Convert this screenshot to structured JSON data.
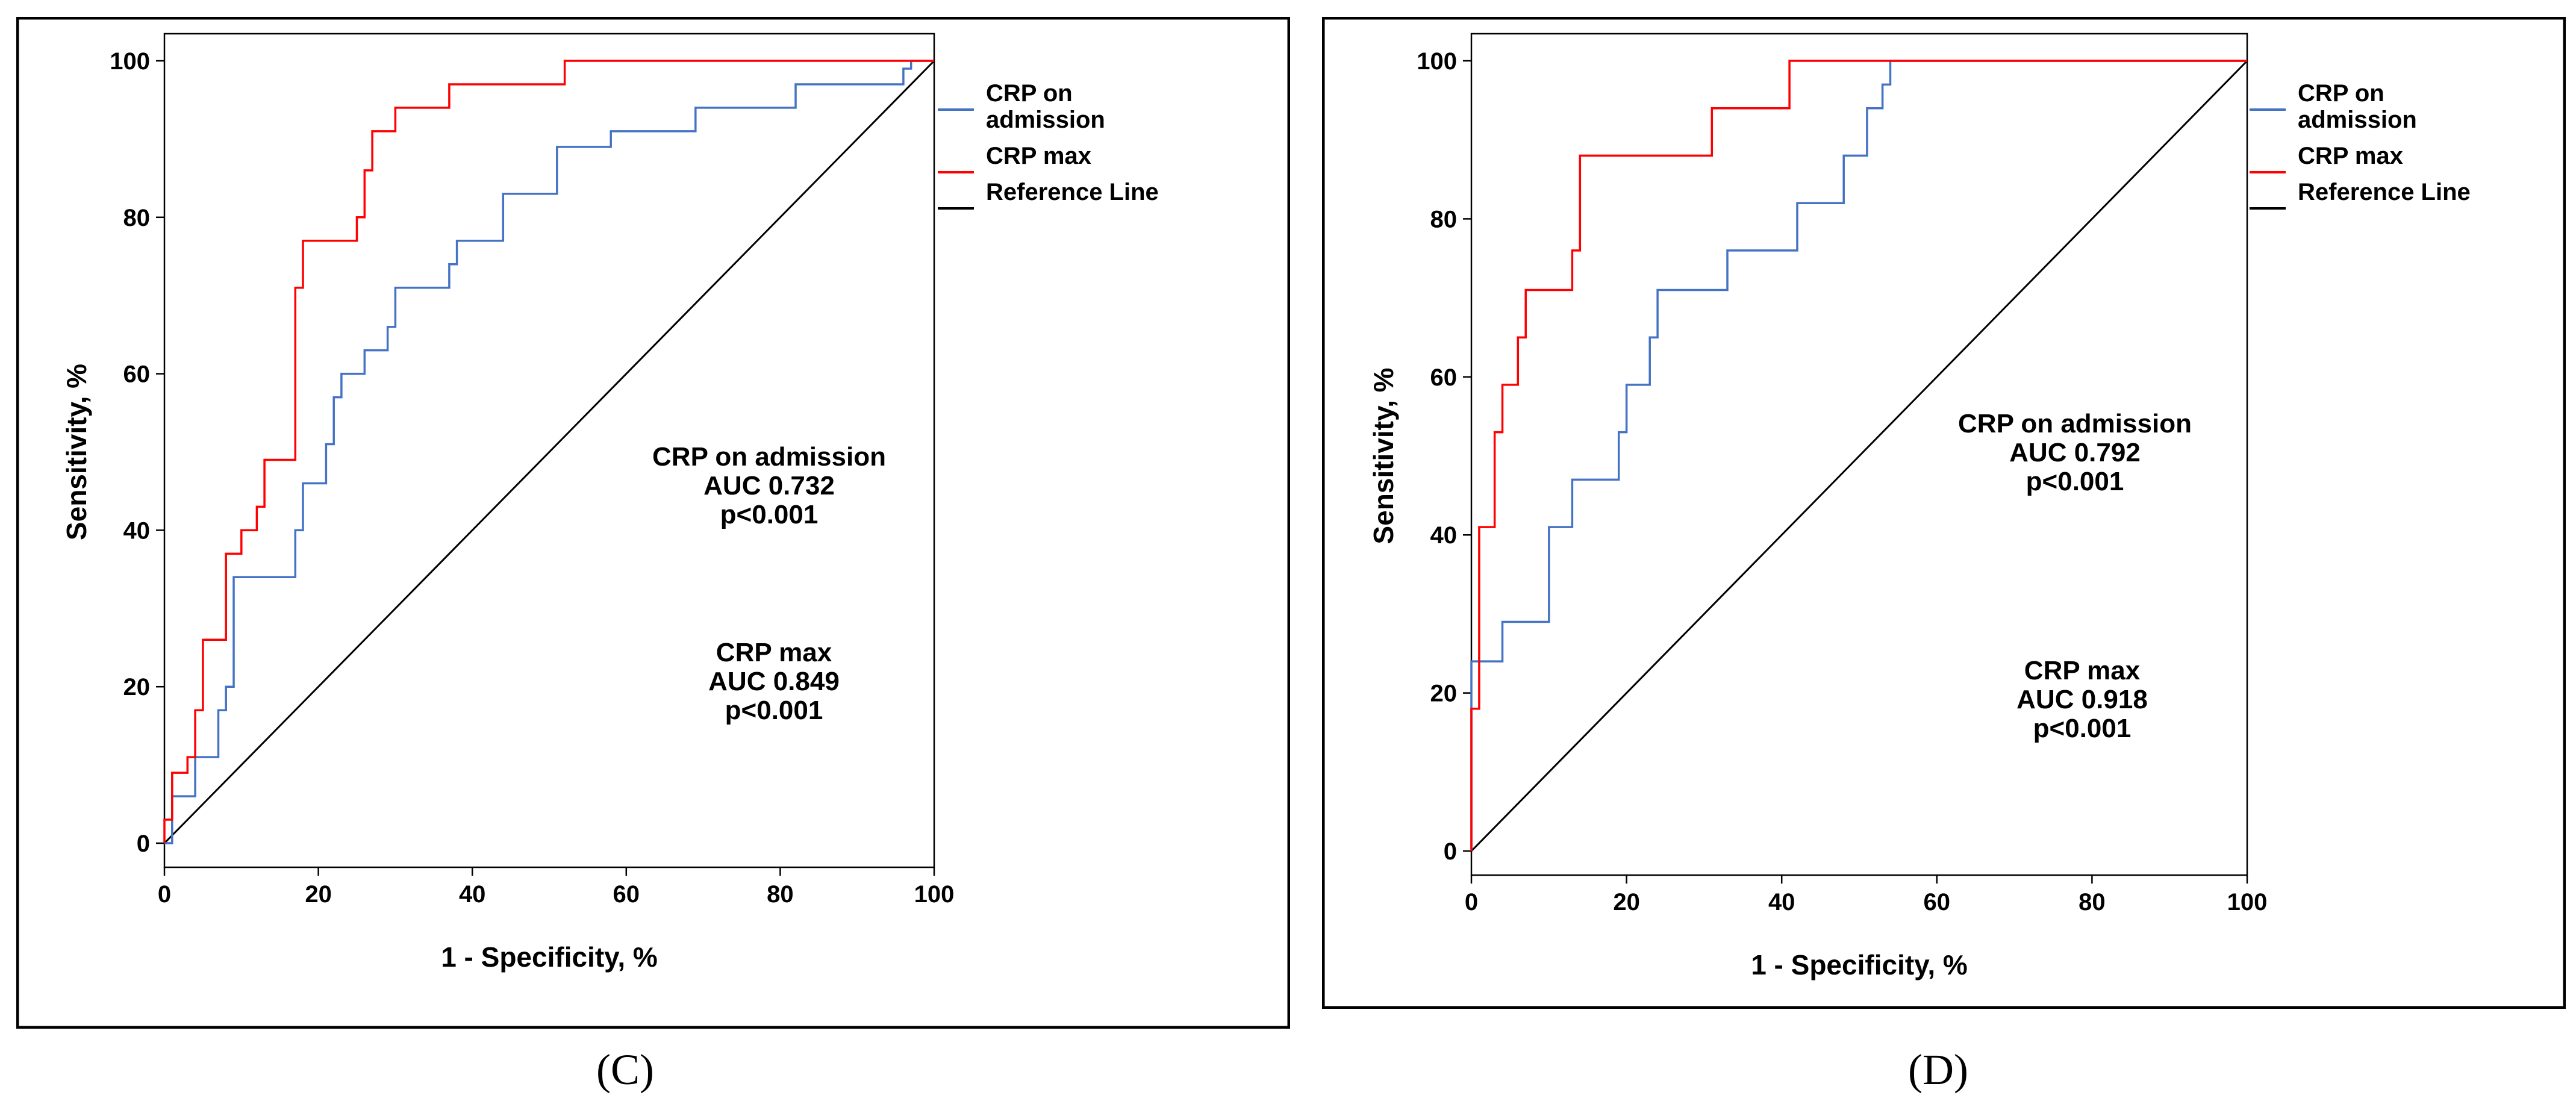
{
  "panels": [
    {
      "letter": "(C)"
    },
    {
      "letter": "(D)"
    }
  ],
  "chart_data": [
    {
      "type": "line",
      "xlabel": "1 - Specificity, %",
      "ylabel": "Sensitivity, %",
      "xlim": [
        0,
        100
      ],
      "ylim": [
        0,
        100
      ],
      "xticks": [
        0,
        20,
        40,
        60,
        80,
        100
      ],
      "yticks": [
        0,
        20,
        40,
        60,
        80,
        100
      ],
      "legend": [
        "CRP on admission",
        "CRP max",
        "Reference Line"
      ],
      "legend_lines": [
        [
          "CRP on",
          "admission"
        ],
        [
          "CRP max"
        ],
        [
          "Reference Line"
        ]
      ],
      "colors": {
        "admission": "#4472c4",
        "max": "#ff0000",
        "reference": "#000000"
      },
      "annotations": [
        {
          "lines": [
            "CRP on admission",
            "AUC 0.732",
            "p<0.001"
          ]
        },
        {
          "lines": [
            "CRP max",
            "AUC 0.849",
            "p<0.001"
          ]
        }
      ],
      "series": [
        {
          "name": "CRP on admission",
          "color": "#4472c4",
          "points": [
            [
              0,
              0
            ],
            [
              1,
              0
            ],
            [
              1,
              6
            ],
            [
              4,
              6
            ],
            [
              4,
              11
            ],
            [
              7,
              11
            ],
            [
              7,
              17
            ],
            [
              8,
              17
            ],
            [
              8,
              20
            ],
            [
              9,
              20
            ],
            [
              9,
              34
            ],
            [
              17,
              34
            ],
            [
              17,
              40
            ],
            [
              18,
              40
            ],
            [
              18,
              46
            ],
            [
              21,
              46
            ],
            [
              21,
              51
            ],
            [
              22,
              51
            ],
            [
              22,
              57
            ],
            [
              23,
              57
            ],
            [
              23,
              60
            ],
            [
              26,
              60
            ],
            [
              26,
              63
            ],
            [
              29,
              63
            ],
            [
              29,
              66
            ],
            [
              30,
              66
            ],
            [
              30,
              71
            ],
            [
              37,
              71
            ],
            [
              37,
              74
            ],
            [
              38,
              74
            ],
            [
              38,
              77
            ],
            [
              44,
              77
            ],
            [
              44,
              83
            ],
            [
              51,
              83
            ],
            [
              51,
              89
            ],
            [
              58,
              89
            ],
            [
              58,
              91
            ],
            [
              69,
              91
            ],
            [
              69,
              94
            ],
            [
              82,
              94
            ],
            [
              82,
              97
            ],
            [
              96,
              97
            ],
            [
              96,
              99
            ],
            [
              97,
              99
            ],
            [
              97,
              100
            ],
            [
              100,
              100
            ]
          ]
        },
        {
          "name": "CRP max",
          "color": "#ff0000",
          "points": [
            [
              0,
              0
            ],
            [
              0,
              3
            ],
            [
              1,
              3
            ],
            [
              1,
              9
            ],
            [
              3,
              9
            ],
            [
              3,
              11
            ],
            [
              4,
              11
            ],
            [
              4,
              17
            ],
            [
              5,
              17
            ],
            [
              5,
              26
            ],
            [
              8,
              26
            ],
            [
              8,
              37
            ],
            [
              10,
              37
            ],
            [
              10,
              40
            ],
            [
              12,
              40
            ],
            [
              12,
              43
            ],
            [
              13,
              43
            ],
            [
              13,
              49
            ],
            [
              17,
              49
            ],
            [
              17,
              71
            ],
            [
              18,
              71
            ],
            [
              18,
              77
            ],
            [
              25,
              77
            ],
            [
              25,
              80
            ],
            [
              26,
              80
            ],
            [
              26,
              86
            ],
            [
              27,
              86
            ],
            [
              27,
              91
            ],
            [
              30,
              91
            ],
            [
              30,
              94
            ],
            [
              37,
              94
            ],
            [
              37,
              97
            ],
            [
              52,
              97
            ],
            [
              52,
              100
            ],
            [
              100,
              100
            ]
          ]
        },
        {
          "name": "Reference Line",
          "color": "#000000",
          "points": [
            [
              0,
              0
            ],
            [
              100,
              100
            ]
          ]
        }
      ]
    },
    {
      "type": "line",
      "xlabel": "1 - Specificity, %",
      "ylabel": "Sensitivity, %",
      "xlim": [
        0,
        100
      ],
      "ylim": [
        0,
        100
      ],
      "xticks": [
        0,
        20,
        40,
        60,
        80,
        100
      ],
      "yticks": [
        0,
        20,
        40,
        60,
        80,
        100
      ],
      "legend": [
        "CRP on admission",
        "CRP max",
        "Reference Line"
      ],
      "legend_lines": [
        [
          "CRP on",
          "admission"
        ],
        [
          "CRP max"
        ],
        [
          "Reference Line"
        ]
      ],
      "colors": {
        "admission": "#4472c4",
        "max": "#ff0000",
        "reference": "#000000"
      },
      "annotations": [
        {
          "lines": [
            "CRP on admission",
            "AUC 0.792",
            "p<0.001"
          ]
        },
        {
          "lines": [
            "CRP max",
            "AUC 0.918",
            "p<0.001"
          ]
        }
      ],
      "series": [
        {
          "name": "CRP on admission",
          "color": "#4472c4",
          "points": [
            [
              0,
              0
            ],
            [
              0,
              24
            ],
            [
              4,
              24
            ],
            [
              4,
              29
            ],
            [
              10,
              29
            ],
            [
              10,
              41
            ],
            [
              13,
              41
            ],
            [
              13,
              47
            ],
            [
              19,
              47
            ],
            [
              19,
              53
            ],
            [
              20,
              53
            ],
            [
              20,
              59
            ],
            [
              23,
              59
            ],
            [
              23,
              65
            ],
            [
              24,
              65
            ],
            [
              24,
              71
            ],
            [
              33,
              71
            ],
            [
              33,
              76
            ],
            [
              42,
              76
            ],
            [
              42,
              82
            ],
            [
              48,
              82
            ],
            [
              48,
              88
            ],
            [
              51,
              88
            ],
            [
              51,
              94
            ],
            [
              53,
              94
            ],
            [
              53,
              97
            ],
            [
              54,
              97
            ],
            [
              54,
              100
            ],
            [
              100,
              100
            ]
          ]
        },
        {
          "name": "CRP max",
          "color": "#ff0000",
          "points": [
            [
              0,
              0
            ],
            [
              0,
              18
            ],
            [
              1,
              18
            ],
            [
              1,
              41
            ],
            [
              3,
              41
            ],
            [
              3,
              53
            ],
            [
              4,
              53
            ],
            [
              4,
              59
            ],
            [
              6,
              59
            ],
            [
              6,
              65
            ],
            [
              7,
              65
            ],
            [
              7,
              71
            ],
            [
              13,
              71
            ],
            [
              13,
              76
            ],
            [
              14,
              76
            ],
            [
              14,
              88
            ],
            [
              31,
              88
            ],
            [
              31,
              94
            ],
            [
              41,
              94
            ],
            [
              41,
              100
            ],
            [
              100,
              100
            ]
          ]
        },
        {
          "name": "Reference Line",
          "color": "#000000",
          "points": [
            [
              0,
              0
            ],
            [
              100,
              100
            ]
          ]
        }
      ]
    }
  ]
}
